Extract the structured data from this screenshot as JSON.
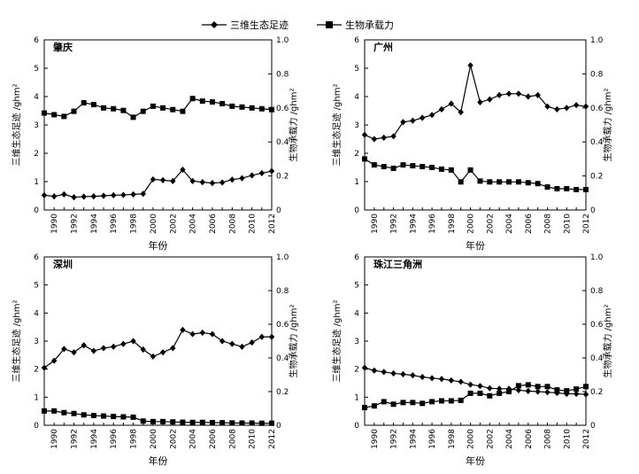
{
  "legend": {
    "footprint_label": "三维生态足迹",
    "capacity_label": "生物承载力"
  },
  "chart_data": [
    {
      "type": "line",
      "title": "肇庆",
      "xlabel": "年份",
      "ylabel_left": "三维生态足迹 /ghm²",
      "ylabel_right": "生物承载力 /ghm²",
      "xlim": [
        1989,
        2012
      ],
      "ylim_left": [
        0,
        6
      ],
      "ylim_right": [
        0,
        1.0
      ],
      "xticks": [
        1990,
        1992,
        1994,
        1996,
        1998,
        2000,
        2002,
        2004,
        2006,
        2008,
        2010,
        2012
      ],
      "yticks_left": [
        0,
        1,
        2,
        3,
        4,
        5,
        6
      ],
      "yticks_right": [
        0,
        0.2,
        0.4,
        0.6,
        0.8,
        1.0
      ],
      "x": [
        1989,
        1990,
        1991,
        1992,
        1993,
        1994,
        1995,
        1996,
        1997,
        1998,
        1999,
        2000,
        2001,
        2002,
        2003,
        2004,
        2005,
        2006,
        2007,
        2008,
        2009,
        2010,
        2011,
        2012
      ],
      "series": [
        {
          "name": "三维生态足迹",
          "axis": "left",
          "marker": "diamond",
          "values": [
            0.52,
            0.48,
            0.55,
            0.45,
            0.47,
            0.48,
            0.5,
            0.52,
            0.53,
            0.55,
            0.57,
            1.08,
            1.05,
            1.02,
            1.42,
            1.02,
            0.98,
            0.95,
            0.97,
            1.07,
            1.12,
            1.22,
            1.3,
            1.37
          ]
        },
        {
          "name": "生物承载力",
          "axis": "right",
          "marker": "square",
          "values": [
            0.57,
            0.56,
            0.55,
            0.58,
            0.63,
            0.62,
            0.6,
            0.595,
            0.585,
            0.545,
            0.58,
            0.61,
            0.6,
            0.59,
            0.58,
            0.655,
            0.64,
            0.635,
            0.625,
            0.61,
            0.605,
            0.6,
            0.595,
            0.59
          ]
        }
      ]
    },
    {
      "type": "line",
      "title": "广州",
      "xlabel": "年份",
      "ylabel_left": "三维生态足迹 /ghm²",
      "ylabel_right": "生物承载力 /ghm²",
      "xlim": [
        1989,
        2012
      ],
      "ylim_left": [
        0,
        6
      ],
      "ylim_right": [
        0,
        1.0
      ],
      "xticks": [
        1990,
        1992,
        1994,
        1996,
        1998,
        2000,
        2002,
        2004,
        2006,
        2008,
        2010,
        2012
      ],
      "yticks_left": [
        0,
        1,
        2,
        3,
        4,
        5,
        6
      ],
      "yticks_right": [
        0,
        0.2,
        0.4,
        0.6,
        0.8,
        1.0
      ],
      "x": [
        1989,
        1990,
        1991,
        1992,
        1993,
        1994,
        1995,
        1996,
        1997,
        1998,
        1999,
        2000,
        2001,
        2002,
        2003,
        2004,
        2005,
        2006,
        2007,
        2008,
        2009,
        2010,
        2011,
        2012
      ],
      "series": [
        {
          "name": "三维生态足迹",
          "axis": "left",
          "marker": "diamond",
          "values": [
            2.65,
            2.5,
            2.55,
            2.6,
            3.1,
            3.15,
            3.25,
            3.35,
            3.55,
            3.75,
            3.45,
            5.1,
            3.8,
            3.9,
            4.05,
            4.1,
            4.1,
            4.0,
            4.05,
            3.65,
            3.55,
            3.6,
            3.7,
            3.65
          ]
        },
        {
          "name": "生物承载力",
          "axis": "right",
          "marker": "square",
          "values": [
            0.3,
            0.265,
            0.255,
            0.245,
            0.265,
            0.26,
            0.255,
            0.25,
            0.24,
            0.235,
            0.165,
            0.235,
            0.17,
            0.165,
            0.165,
            0.165,
            0.165,
            0.16,
            0.155,
            0.135,
            0.125,
            0.125,
            0.12,
            0.12
          ]
        }
      ]
    },
    {
      "type": "line",
      "title": "深圳",
      "xlabel": "年份",
      "ylabel_left": "三维生态足迹 /ghm²",
      "ylabel_right": "生物承载力 /ghm²",
      "xlim": [
        1989,
        2012
      ],
      "ylim_left": [
        0,
        6
      ],
      "ylim_right": [
        0,
        1.0
      ],
      "xticks": [
        1990,
        1992,
        1994,
        1996,
        1998,
        2000,
        2002,
        2004,
        2006,
        2008,
        2010,
        2012
      ],
      "yticks_left": [
        0,
        1,
        2,
        3,
        4,
        5,
        6
      ],
      "yticks_right": [
        0,
        0.2,
        0.4,
        0.6,
        0.8,
        1.0
      ],
      "x": [
        1989,
        1990,
        1991,
        1992,
        1993,
        1994,
        1995,
        1996,
        1997,
        1998,
        1999,
        2000,
        2001,
        2002,
        2003,
        2004,
        2005,
        2006,
        2007,
        2008,
        2009,
        2010,
        2011,
        2012
      ],
      "series": [
        {
          "name": "三维生态足迹",
          "axis": "left",
          "marker": "diamond",
          "values": [
            2.05,
            2.3,
            2.72,
            2.6,
            2.85,
            2.65,
            2.75,
            2.8,
            2.9,
            3.0,
            2.7,
            2.45,
            2.6,
            2.75,
            3.4,
            3.25,
            3.3,
            3.25,
            3.0,
            2.9,
            2.8,
            2.95,
            3.15,
            3.15
          ]
        },
        {
          "name": "生物承载力",
          "axis": "right",
          "marker": "square",
          "values": [
            0.085,
            0.085,
            0.075,
            0.07,
            0.062,
            0.058,
            0.055,
            0.052,
            0.05,
            0.048,
            0.025,
            0.022,
            0.022,
            0.02,
            0.018,
            0.017,
            0.017,
            0.016,
            0.015,
            0.014,
            0.013,
            0.013,
            0.012,
            0.012
          ]
        }
      ]
    },
    {
      "type": "line",
      "title": "珠江三角洲",
      "xlabel": "年份",
      "ylabel_left": "三维生态足迹 /ghm²",
      "ylabel_right": "生物承载力 /ghm²",
      "xlim": [
        1989,
        2012
      ],
      "ylim_left": [
        0,
        6
      ],
      "ylim_right": [
        0,
        1.0
      ],
      "xticks": [
        1990,
        1992,
        1994,
        1996,
        1998,
        2000,
        2002,
        2004,
        2006,
        2008,
        2010,
        2012
      ],
      "yticks_left": [
        0,
        1,
        2,
        3,
        4,
        5,
        6
      ],
      "yticks_right": [
        0,
        0.2,
        0.4,
        0.6,
        0.8,
        1.0
      ],
      "x": [
        1989,
        1990,
        1991,
        1992,
        1993,
        1994,
        1995,
        1996,
        1997,
        1998,
        1999,
        2000,
        2001,
        2002,
        2003,
        2004,
        2005,
        2006,
        2007,
        2008,
        2009,
        2010,
        2011,
        2012
      ],
      "series": [
        {
          "name": "三维生态足迹",
          "axis": "left",
          "marker": "diamond",
          "values": [
            2.05,
            1.95,
            1.9,
            1.85,
            1.82,
            1.78,
            1.72,
            1.68,
            1.65,
            1.6,
            1.55,
            1.45,
            1.4,
            1.32,
            1.3,
            1.3,
            1.25,
            1.22,
            1.2,
            1.18,
            1.15,
            1.12,
            1.12,
            1.1
          ]
        },
        {
          "name": "生物承载力",
          "axis": "right",
          "marker": "square",
          "values": [
            0.105,
            0.115,
            0.14,
            0.125,
            0.135,
            0.135,
            0.13,
            0.14,
            0.145,
            0.145,
            0.148,
            0.19,
            0.19,
            0.175,
            0.19,
            0.2,
            0.235,
            0.24,
            0.23,
            0.23,
            0.21,
            0.205,
            0.215,
            0.23
          ]
        }
      ]
    }
  ]
}
